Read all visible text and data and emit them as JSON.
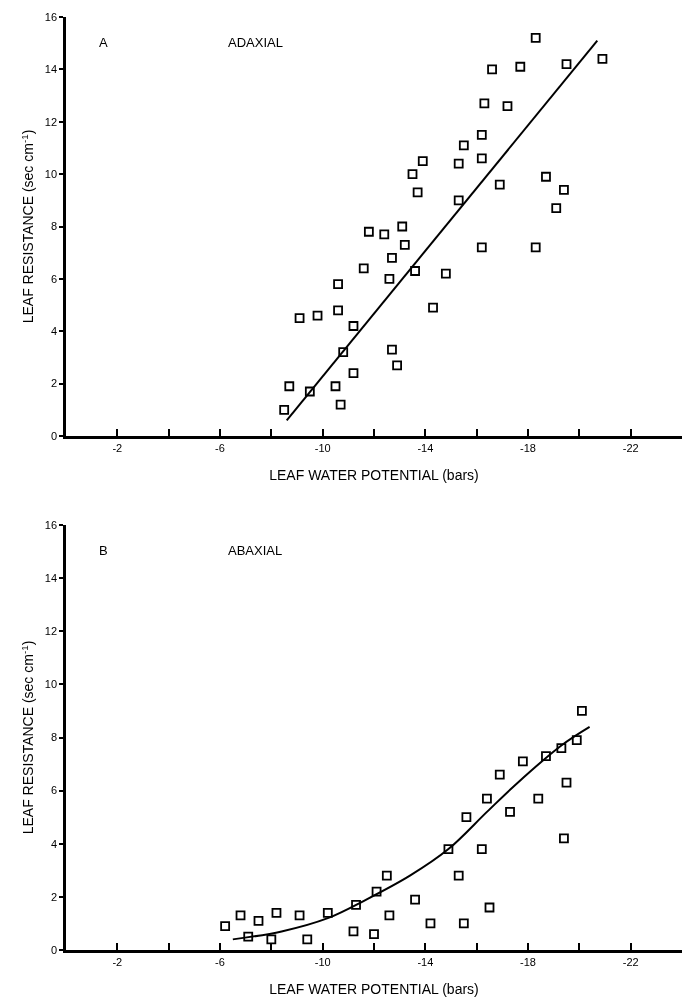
{
  "chart_data": [
    {
      "type": "scatter",
      "annotations": [
        "A",
        "ADAXIAL"
      ],
      "xlabel": "LEAF WATER POTENTIAL (bars)",
      "ylabel": "LEAF RESISTANCE (sec cm$^{-1}$)",
      "xlim": [
        0,
        -24
      ],
      "ylim": [
        0,
        16
      ],
      "xticks": [
        {
          "value": -2,
          "label": "-2"
        },
        {
          "value": -4,
          "label": null
        },
        {
          "value": -6,
          "label": "-6"
        },
        {
          "value": -8,
          "label": null
        },
        {
          "value": -10,
          "label": "-10"
        },
        {
          "value": -12,
          "label": null
        },
        {
          "value": -14,
          "label": "-14"
        },
        {
          "value": -16,
          "label": null
        },
        {
          "value": -18,
          "label": "-18"
        },
        {
          "value": -20,
          "label": null
        },
        {
          "value": -22,
          "label": "-22"
        }
      ],
      "yticks": [
        0,
        2,
        4,
        6,
        8,
        10,
        12,
        14,
        16
      ],
      "grid": false,
      "series": [
        {
          "marker": "square",
          "color": "#000000",
          "x": [
            -8.5,
            -8.7,
            -9.5,
            -9.1,
            -9.8,
            -10.5,
            -10.7,
            -10.6,
            -10.6,
            -11.2,
            -10.8,
            -11.2,
            -11.6,
            -11.8,
            -12.4,
            -12.6,
            -12.7,
            -13.1,
            -13.2,
            -12.7,
            -12.9,
            -13.5,
            -13.7,
            -13.9,
            -13.6,
            -14.3,
            -14.8,
            -15.3,
            -15.3,
            -15.5,
            -16.2,
            -16.2,
            -16.3,
            -16.6,
            -16.2,
            -16.9,
            -17.2,
            -17.7,
            -18.3,
            -18.3,
            -18.7,
            -19.1,
            -19.4,
            -19.5,
            -20.9
          ],
          "values": [
            1.0,
            1.9,
            1.7,
            4.5,
            4.6,
            1.9,
            1.2,
            4.8,
            5.8,
            4.2,
            3.2,
            2.4,
            6.4,
            7.8,
            7.7,
            6.0,
            6.8,
            8.0,
            7.3,
            3.3,
            2.7,
            10.0,
            9.3,
            10.5,
            6.3,
            4.9,
            6.2,
            10.4,
            9.0,
            11.1,
            11.5,
            10.6,
            12.7,
            14.0,
            7.2,
            9.6,
            12.6,
            14.1,
            15.2,
            7.2,
            9.9,
            8.7,
            9.4,
            14.2,
            14.4
          ]
        },
        {
          "type": "line",
          "color": "#000000",
          "line_style": "solid",
          "x": [
            -8.6,
            -20.7
          ],
          "values": [
            0.6,
            15.1
          ]
        }
      ]
    },
    {
      "type": "scatter",
      "annotations": [
        "B",
        "ABAXIAL"
      ],
      "xlabel": "LEAF WATER POTENTIAL (bars)",
      "ylabel": "LEAF RESISTANCE (sec cm$^{-1}$)",
      "xlim": [
        0,
        -24
      ],
      "ylim": [
        0,
        16
      ],
      "xticks": [
        {
          "value": -2,
          "label": "-2"
        },
        {
          "value": -4,
          "label": null
        },
        {
          "value": -6,
          "label": "-6"
        },
        {
          "value": -8,
          "label": null
        },
        {
          "value": -10,
          "label": "-10"
        },
        {
          "value": -12,
          "label": null
        },
        {
          "value": -14,
          "label": "-14"
        },
        {
          "value": -16,
          "label": null
        },
        {
          "value": -18,
          "label": "-18"
        },
        {
          "value": -20,
          "label": null
        },
        {
          "value": -22,
          "label": "-22"
        }
      ],
      "yticks": [
        0,
        2,
        4,
        6,
        8,
        10,
        12,
        14,
        16
      ],
      "grid": false,
      "series": [
        {
          "marker": "square",
          "color": "#000000",
          "x": [
            -6.2,
            -6.8,
            -7.1,
            -7.5,
            -8.0,
            -8.2,
            -9.1,
            -9.4,
            -10.2,
            -11.2,
            -11.3,
            -12.0,
            -12.1,
            -12.5,
            -12.6,
            -13.6,
            -14.2,
            -14.9,
            -15.3,
            -15.5,
            -15.6,
            -16.2,
            -16.4,
            -16.5,
            -16.9,
            -17.3,
            -17.8,
            -18.4,
            -18.7,
            -19.3,
            -19.4,
            -19.5,
            -19.9,
            -20.1
          ],
          "values": [
            0.9,
            1.3,
            0.5,
            1.1,
            0.4,
            1.4,
            1.3,
            0.4,
            1.4,
            0.7,
            1.7,
            0.6,
            2.2,
            2.8,
            1.3,
            1.9,
            1.0,
            3.8,
            2.8,
            1.0,
            5.0,
            3.8,
            5.7,
            1.6,
            6.6,
            5.2,
            7.1,
            5.7,
            7.3,
            7.6,
            4.2,
            6.3,
            7.9,
            9.0
          ]
        },
        {
          "type": "line",
          "color": "#000000",
          "line_style": "solid",
          "x": [
            -6.5,
            -8.4,
            -10.2,
            -11.7,
            -13.4,
            -14.9,
            -16.4,
            -17.6,
            -19.3,
            -20.4
          ],
          "values": [
            0.4,
            0.7,
            1.2,
            1.9,
            2.8,
            3.8,
            5.2,
            6.3,
            7.7,
            8.4
          ]
        }
      ]
    }
  ]
}
